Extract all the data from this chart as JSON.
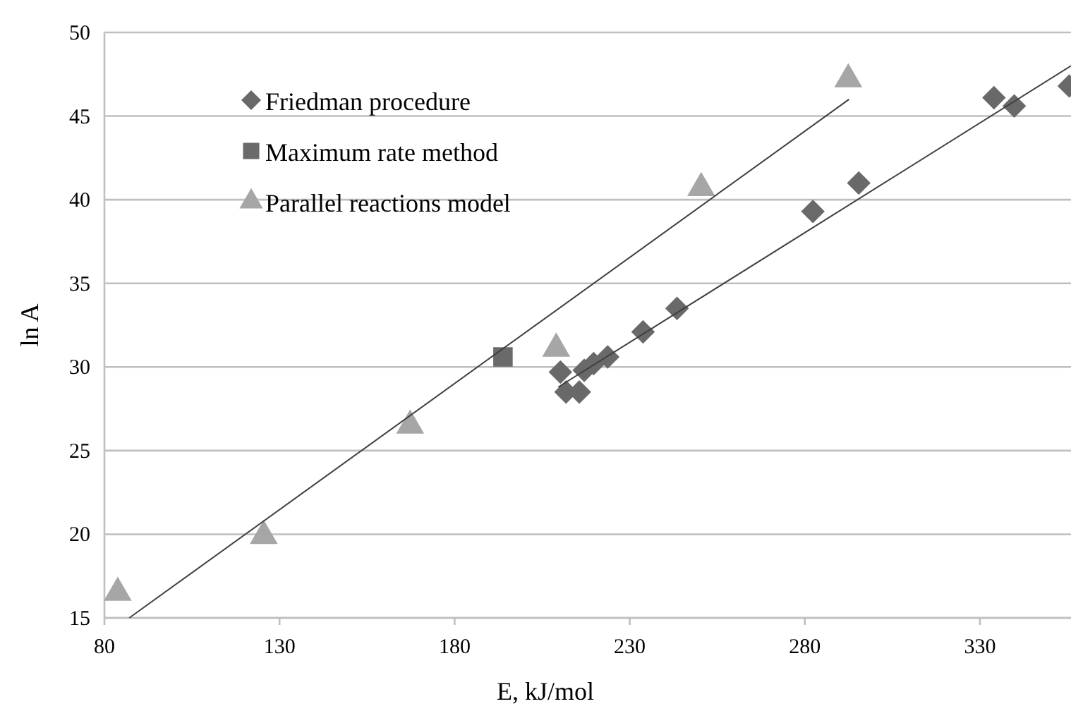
{
  "chart_data": {
    "type": "scatter",
    "xlabel": "E, kJ/mol",
    "ylabel": "ln A",
    "xlim": [
      80,
      356
    ],
    "xticks": [
      80,
      130,
      180,
      230,
      280,
      330
    ],
    "ylim": [
      15,
      50
    ],
    "yticks": [
      15,
      20,
      25,
      30,
      35,
      40,
      45,
      50
    ],
    "grid": "y",
    "legend": "top left",
    "series": [
      {
        "name": "Friedman procedure",
        "color": "#696969",
        "marker": "diamond",
        "x": [
          334,
          339.8,
          355.5,
          295.4,
          282.3,
          243.5,
          233.8,
          223.7,
          219.7,
          217,
          210.2,
          211.8,
          215.6
        ],
        "values": [
          46.1,
          45.6,
          46.8,
          41.0,
          39.3,
          33.5,
          32.1,
          30.6,
          30.2,
          29.8,
          29.7,
          28.5,
          28.5
        ]
      },
      {
        "name": "Maximum rate method",
        "color": "#6a6a6a",
        "marker": "square",
        "x": [
          193.8
        ],
        "values": [
          30.6
        ]
      },
      {
        "name": "Parallel reactions model",
        "color": "#a6a6a6",
        "marker": "triangle",
        "x": [
          83.8,
          125.5,
          167.3,
          209,
          250.4,
          292.4
        ],
        "values": [
          16.5,
          19.9,
          26.5,
          31.1,
          40.7,
          47.2
        ]
      },
      {
        "type": "line",
        "color": "#404040",
        "marker": "none",
        "x": [
          87.1,
          292.6
        ],
        "values": [
          15,
          46.0
        ]
      },
      {
        "type": "line",
        "color": "#404040",
        "marker": "none",
        "x": [
          209.6,
          356
        ],
        "values": [
          28.8,
          48.0
        ]
      }
    ]
  }
}
